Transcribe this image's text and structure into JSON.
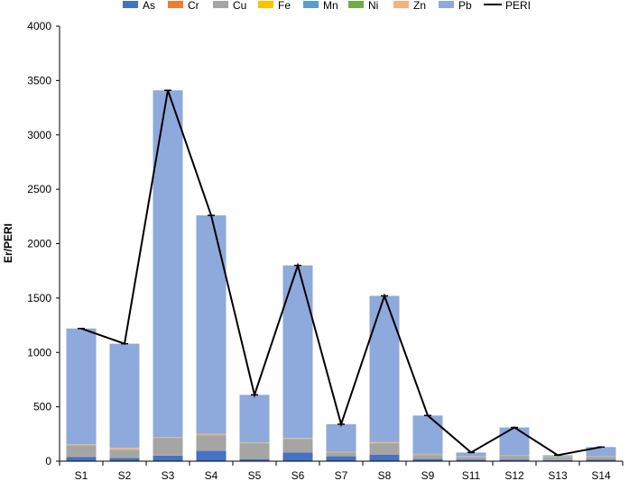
{
  "chart_data": {
    "type": "bar",
    "stacked": true,
    "overlay_line_series": "PERI",
    "categories": [
      "S1",
      "S2",
      "S3",
      "S4",
      "S5",
      "S6",
      "S7",
      "S8",
      "S9",
      "S11",
      "S12",
      "S13",
      "S14"
    ],
    "ylabel": "Er/PERI",
    "ylim": [
      0,
      4000
    ],
    "yticks": [
      0,
      500,
      1000,
      1500,
      2000,
      2500,
      3000,
      3500,
      4000
    ],
    "legend_position": "top",
    "grid": false,
    "series": [
      {
        "name": "As",
        "color": "#4472C4",
        "values": [
          40,
          30,
          50,
          95,
          20,
          80,
          45,
          60,
          20,
          15,
          15,
          10,
          15
        ]
      },
      {
        "name": "Cr",
        "color": "#ED7D31",
        "values": [
          2,
          2,
          2,
          2,
          2,
          2,
          1,
          2,
          1,
          1,
          1,
          1,
          1
        ]
      },
      {
        "name": "Cu",
        "color": "#A5A5A5",
        "values": [
          100,
          70,
          160,
          140,
          140,
          120,
          30,
          100,
          35,
          20,
          30,
          25,
          25
        ]
      },
      {
        "name": "Fe",
        "color": "#FFC000",
        "values": [
          1,
          1,
          1,
          1,
          1,
          1,
          1,
          1,
          1,
          1,
          1,
          1,
          1
        ]
      },
      {
        "name": "Mn",
        "color": "#5B9BD5",
        "values": [
          2,
          2,
          2,
          2,
          2,
          2,
          2,
          2,
          2,
          2,
          2,
          2,
          2
        ]
      },
      {
        "name": "Ni",
        "color": "#70AD47",
        "values": [
          3,
          3,
          3,
          3,
          3,
          3,
          3,
          3,
          3,
          2,
          2,
          2,
          2
        ]
      },
      {
        "name": "Zn",
        "color": "#F4B183",
        "values": [
          8,
          15,
          5,
          10,
          5,
          5,
          5,
          10,
          5,
          3,
          3,
          2,
          3
        ]
      },
      {
        "name": "Pb",
        "color": "#8EA9DB",
        "values": [
          1064,
          957,
          3187,
          2007,
          437,
          1587,
          253,
          1342,
          353,
          36,
          256,
          12,
          81
        ]
      }
    ],
    "line": {
      "name": "PERI",
      "color": "#000000",
      "values": [
        1220,
        1080,
        3410,
        2260,
        610,
        1800,
        340,
        1520,
        420,
        80,
        310,
        55,
        130
      ]
    }
  }
}
